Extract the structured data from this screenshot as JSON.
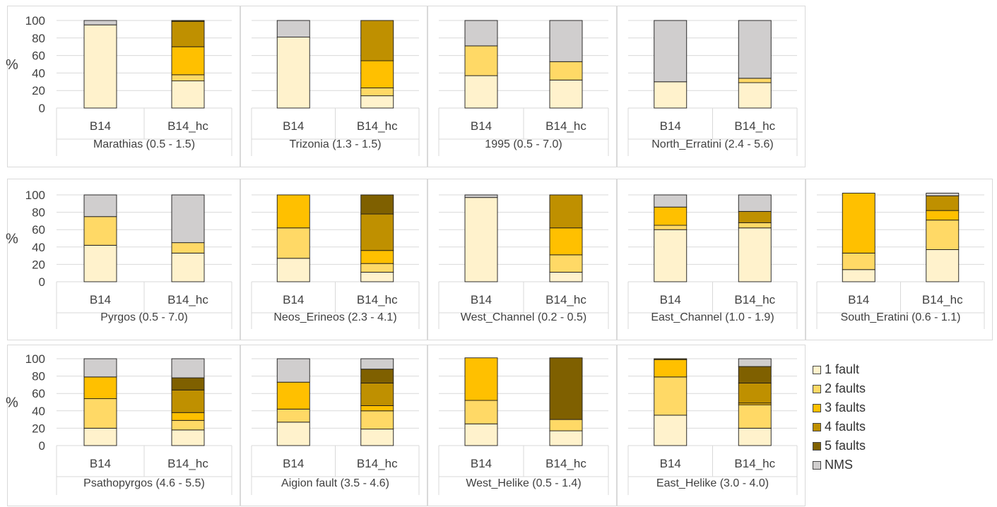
{
  "legend": [
    {
      "name": "1 fault",
      "color": "#fff2cc"
    },
    {
      "name": "2 faults",
      "color": "#ffd966"
    },
    {
      "name": "3 faults",
      "color": "#ffc000"
    },
    {
      "name": "4 faults",
      "color": "#bf9000"
    },
    {
      "name": "5 faults",
      "color": "#7f6000"
    },
    {
      "name": "NMS",
      "color": "#d0cece"
    }
  ],
  "chart_data": [
    {
      "type": "bar",
      "stacked": true,
      "title": "Marathias (0.5 - 1.5)",
      "categories": [
        "B14",
        "B14_hc"
      ],
      "ylabel": "%",
      "ylim": [
        0,
        100
      ],
      "yticks": [
        0,
        20,
        40,
        60,
        80,
        100
      ],
      "series": [
        {
          "name": "1 fault",
          "values": [
            95,
            31
          ]
        },
        {
          "name": "2 faults",
          "values": [
            0,
            7
          ]
        },
        {
          "name": "3 faults",
          "values": [
            0,
            32
          ]
        },
        {
          "name": "4 faults",
          "values": [
            0,
            29
          ]
        },
        {
          "name": "5 faults",
          "values": [
            0,
            1
          ]
        },
        {
          "name": "NMS",
          "values": [
            5,
            0
          ]
        }
      ]
    },
    {
      "type": "bar",
      "stacked": true,
      "title": "Trizonia (1.3 - 1.5)",
      "categories": [
        "B14",
        "B14_hc"
      ],
      "ylabel": "",
      "ylim": [
        0,
        100
      ],
      "yticks": [],
      "series": [
        {
          "name": "1 fault",
          "values": [
            81,
            14
          ]
        },
        {
          "name": "2 faults",
          "values": [
            0,
            9
          ]
        },
        {
          "name": "3 faults",
          "values": [
            0,
            31
          ]
        },
        {
          "name": "4 faults",
          "values": [
            0,
            46
          ]
        },
        {
          "name": "5 faults",
          "values": [
            0,
            0
          ]
        },
        {
          "name": "NMS",
          "values": [
            19,
            0
          ]
        }
      ]
    },
    {
      "type": "bar",
      "stacked": true,
      "title": "1995 (0.5 - 7.0)",
      "categories": [
        "B14",
        "B14_hc"
      ],
      "ylabel": "",
      "ylim": [
        0,
        100
      ],
      "yticks": [],
      "series": [
        {
          "name": "1 fault",
          "values": [
            37,
            32
          ]
        },
        {
          "name": "2 faults",
          "values": [
            34,
            21
          ]
        },
        {
          "name": "3 faults",
          "values": [
            0,
            0
          ]
        },
        {
          "name": "4 faults",
          "values": [
            0,
            0
          ]
        },
        {
          "name": "5 faults",
          "values": [
            0,
            0
          ]
        },
        {
          "name": "NMS",
          "values": [
            29,
            47
          ]
        }
      ]
    },
    {
      "type": "bar",
      "stacked": true,
      "title": "North_Erratini (2.4 - 5.6)",
      "categories": [
        "B14",
        "B14_hc"
      ],
      "ylabel": "",
      "ylim": [
        0,
        100
      ],
      "yticks": [],
      "series": [
        {
          "name": "1 fault",
          "values": [
            30,
            29
          ]
        },
        {
          "name": "2 faults",
          "values": [
            0,
            5
          ]
        },
        {
          "name": "3 faults",
          "values": [
            0,
            0
          ]
        },
        {
          "name": "4 faults",
          "values": [
            0,
            0
          ]
        },
        {
          "name": "5 faults",
          "values": [
            0,
            0
          ]
        },
        {
          "name": "NMS",
          "values": [
            70,
            66
          ]
        }
      ]
    },
    {
      "type": "bar",
      "stacked": true,
      "title": "Pyrgos (0.5 - 7.0)",
      "categories": [
        "B14",
        "B14_hc"
      ],
      "ylabel": "%",
      "ylim": [
        0,
        100
      ],
      "yticks": [
        0,
        20,
        40,
        60,
        80,
        100
      ],
      "series": [
        {
          "name": "1 fault",
          "values": [
            42,
            33
          ]
        },
        {
          "name": "2 faults",
          "values": [
            33,
            12
          ]
        },
        {
          "name": "3 faults",
          "values": [
            0,
            0
          ]
        },
        {
          "name": "4 faults",
          "values": [
            0,
            0
          ]
        },
        {
          "name": "5 faults",
          "values": [
            0,
            0
          ]
        },
        {
          "name": "NMS",
          "values": [
            25,
            55
          ]
        }
      ]
    },
    {
      "type": "bar",
      "stacked": true,
      "title": "Neos_Erineos (2.3 - 4.1)",
      "categories": [
        "B14",
        "B14_hc"
      ],
      "ylabel": "",
      "ylim": [
        0,
        100
      ],
      "yticks": [],
      "series": [
        {
          "name": "1 fault",
          "values": [
            27,
            11
          ]
        },
        {
          "name": "2 faults",
          "values": [
            35,
            10
          ]
        },
        {
          "name": "3 faults",
          "values": [
            38,
            15
          ]
        },
        {
          "name": "4 faults",
          "values": [
            0,
            42
          ]
        },
        {
          "name": "5 faults",
          "values": [
            0,
            22
          ]
        },
        {
          "name": "NMS",
          "values": [
            0,
            0
          ]
        }
      ]
    },
    {
      "type": "bar",
      "stacked": true,
      "title": "West_Channel (0.2 - 0.5)",
      "categories": [
        "B14",
        "B14_hc"
      ],
      "ylabel": "",
      "ylim": [
        0,
        100
      ],
      "yticks": [],
      "series": [
        {
          "name": "1 fault",
          "values": [
            97,
            11
          ]
        },
        {
          "name": "2 faults",
          "values": [
            0,
            20
          ]
        },
        {
          "name": "3 faults",
          "values": [
            0,
            31
          ]
        },
        {
          "name": "4 faults",
          "values": [
            0,
            38
          ]
        },
        {
          "name": "5 faults",
          "values": [
            0,
            0
          ]
        },
        {
          "name": "NMS",
          "values": [
            3,
            0
          ]
        }
      ]
    },
    {
      "type": "bar",
      "stacked": true,
      "title": "East_Channel (1.0 - 1.9)",
      "categories": [
        "B14",
        "B14_hc"
      ],
      "ylabel": "",
      "ylim": [
        0,
        100
      ],
      "yticks": [],
      "series": [
        {
          "name": "1 fault",
          "values": [
            60,
            62
          ]
        },
        {
          "name": "2 faults",
          "values": [
            5,
            6
          ]
        },
        {
          "name": "3 faults",
          "values": [
            21,
            0
          ]
        },
        {
          "name": "4 faults",
          "values": [
            0,
            13
          ]
        },
        {
          "name": "5 faults",
          "values": [
            0,
            0
          ]
        },
        {
          "name": "NMS",
          "values": [
            14,
            19
          ]
        }
      ]
    },
    {
      "type": "bar",
      "stacked": true,
      "title": "South_Eratini (0.6 - 1.1)",
      "categories": [
        "B14",
        "B14_hc"
      ],
      "ylabel": "",
      "ylim": [
        0,
        100
      ],
      "yticks": [],
      "series": [
        {
          "name": "1 fault",
          "values": [
            14,
            37
          ]
        },
        {
          "name": "2 faults",
          "values": [
            19,
            34
          ]
        },
        {
          "name": "3 faults",
          "values": [
            69,
            11
          ]
        },
        {
          "name": "4 faults",
          "values": [
            0,
            17
          ]
        },
        {
          "name": "5 faults",
          "values": [
            0,
            0
          ]
        },
        {
          "name": "NMS",
          "values": [
            0,
            3
          ]
        }
      ]
    },
    {
      "type": "bar",
      "stacked": true,
      "title": "Psathopyrgos (4.6 - 5.5)",
      "categories": [
        "B14",
        "B14_hc"
      ],
      "ylabel": "%",
      "ylim": [
        0,
        100
      ],
      "yticks": [
        0,
        20,
        40,
        60,
        80,
        100
      ],
      "series": [
        {
          "name": "1 fault",
          "values": [
            20,
            18
          ]
        },
        {
          "name": "2 faults",
          "values": [
            34,
            11
          ]
        },
        {
          "name": "3 faults",
          "values": [
            25,
            9
          ]
        },
        {
          "name": "4 faults",
          "values": [
            0,
            26
          ]
        },
        {
          "name": "5 faults",
          "values": [
            0,
            14
          ]
        },
        {
          "name": "NMS",
          "values": [
            21,
            22
          ]
        }
      ]
    },
    {
      "type": "bar",
      "stacked": true,
      "title": "Aigion fault (3.5 - 4.6)",
      "categories": [
        "B14",
        "B14_hc"
      ],
      "ylabel": "",
      "ylim": [
        0,
        100
      ],
      "yticks": [],
      "series": [
        {
          "name": "1 fault",
          "values": [
            27,
            19
          ]
        },
        {
          "name": "2 faults",
          "values": [
            15,
            21
          ]
        },
        {
          "name": "3 faults",
          "values": [
            31,
            6
          ]
        },
        {
          "name": "4 faults",
          "values": [
            0,
            26
          ]
        },
        {
          "name": "5 faults",
          "values": [
            0,
            16
          ]
        },
        {
          "name": "NMS",
          "values": [
            27,
            12
          ]
        }
      ]
    },
    {
      "type": "bar",
      "stacked": true,
      "title": "West_Helike (0.5 - 1.4)",
      "categories": [
        "B14",
        "B14_hc"
      ],
      "ylabel": "",
      "ylim": [
        0,
        100
      ],
      "yticks": [],
      "series": [
        {
          "name": "1 fault",
          "values": [
            25,
            17
          ]
        },
        {
          "name": "2 faults",
          "values": [
            27,
            13
          ]
        },
        {
          "name": "3 faults",
          "values": [
            49,
            0
          ]
        },
        {
          "name": "4 faults",
          "values": [
            0,
            0
          ]
        },
        {
          "name": "5 faults",
          "values": [
            0,
            71
          ]
        },
        {
          "name": "NMS",
          "values": [
            0,
            0
          ]
        }
      ]
    },
    {
      "type": "bar",
      "stacked": true,
      "title": "East_Helike (3.0 - 4.0)",
      "categories": [
        "B14",
        "B14_hc"
      ],
      "ylabel": "",
      "ylim": [
        0,
        100
      ],
      "yticks": [],
      "series": [
        {
          "name": "1 fault",
          "values": [
            35,
            20
          ]
        },
        {
          "name": "2 faults",
          "values": [
            44,
            27
          ]
        },
        {
          "name": "3 faults",
          "values": [
            20,
            2
          ]
        },
        {
          "name": "4 faults",
          "values": [
            0,
            23
          ]
        },
        {
          "name": "5 faults",
          "values": [
            1,
            19
          ]
        },
        {
          "name": "NMS",
          "values": [
            0,
            9
          ]
        }
      ]
    }
  ]
}
